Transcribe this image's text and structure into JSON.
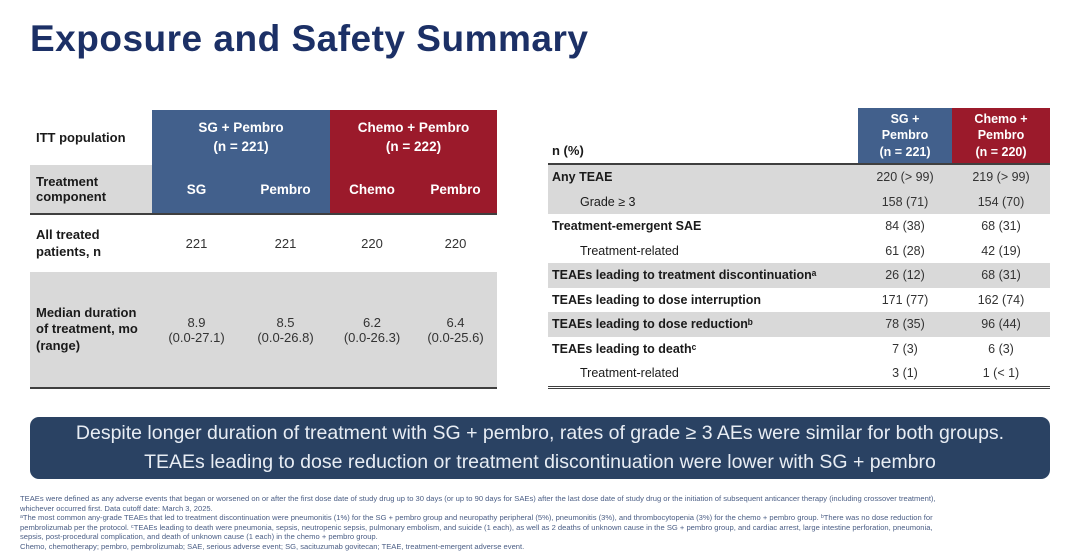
{
  "title": "Exposure and Safety Summary",
  "left_table": {
    "corner_label": "ITT population",
    "component_label": "Treatment component",
    "groups": [
      {
        "label": "SG + Pembro\n(n = 221)",
        "color": "blue"
      },
      {
        "label": "Chemo + Pembro\n(n = 222)",
        "color": "red"
      }
    ],
    "component_columns": [
      "SG",
      "Pembro",
      "Chemo",
      "Pembro"
    ],
    "rows": [
      {
        "label": "All treated patients, n",
        "values": [
          "221",
          "221",
          "220",
          "220"
        ],
        "shaded": false
      },
      {
        "label": "Median duration of treatment, mo (range)",
        "values": [
          "8.9\n(0.0-27.1)",
          "8.5\n(0.0-26.8)",
          "6.2\n(0.0-26.3)",
          "6.4\n(0.0-25.6)"
        ],
        "shaded": true
      }
    ]
  },
  "right_table": {
    "corner_label": "n (%)",
    "columns": [
      {
        "label": "SG +\nPembro\n(n = 221)",
        "color": "blue"
      },
      {
        "label": "Chemo +\nPembro\n(n = 220)",
        "color": "red"
      }
    ],
    "rows": [
      {
        "label": "Any TEAE",
        "bold": true,
        "indent": false,
        "shaded": true,
        "values": [
          "220 (> 99)",
          "219 (> 99)"
        ]
      },
      {
        "label": "Grade ≥ 3",
        "bold": false,
        "indent": true,
        "shaded": true,
        "values": [
          "158 (71)",
          "154 (70)"
        ]
      },
      {
        "label": "Treatment-emergent SAE",
        "bold": true,
        "indent": false,
        "shaded": false,
        "values": [
          "84 (38)",
          "68 (31)"
        ]
      },
      {
        "label": "Treatment-related",
        "bold": false,
        "indent": true,
        "shaded": false,
        "values": [
          "61 (28)",
          "42 (19)"
        ]
      },
      {
        "label": "TEAEs leading to treatment discontinuationᵃ",
        "bold": true,
        "indent": false,
        "shaded": true,
        "values": [
          "26 (12)",
          "68 (31)"
        ]
      },
      {
        "label": "TEAEs leading to dose interruption",
        "bold": true,
        "indent": false,
        "shaded": false,
        "values": [
          "171 (77)",
          "162 (74)"
        ]
      },
      {
        "label": "TEAEs leading to dose reductionᵇ",
        "bold": true,
        "indent": false,
        "shaded": true,
        "values": [
          "78 (35)",
          "96 (44)"
        ]
      },
      {
        "label": "TEAEs leading to deathᶜ",
        "bold": true,
        "indent": false,
        "shaded": false,
        "values": [
          "7 (3)",
          "6 (3)"
        ]
      },
      {
        "label": "Treatment-related",
        "bold": false,
        "indent": true,
        "shaded": false,
        "values": [
          "3 (1)",
          "1 (< 1)"
        ]
      }
    ]
  },
  "callout": {
    "text": "Despite longer duration of treatment with SG + pembro, rates of grade ≥ 3 AEs were similar for both groups. TEAEs leading to dose reduction or treatment discontinuation were lower with SG + pembro"
  },
  "footnotes": [
    "TEAEs were defined as any adverse events that began or worsened on or after the first dose date of study drug up to 30 days (or up to 90 days for SAEs) after the last dose date of study drug or the initiation of subsequent anticancer therapy (including crossover treatment),",
    "whichever occurred first. Data cutoff date: March 3, 2025.",
    "ᵃThe most common any-grade TEAEs that led to treatment discontinuation were pneumonitis (1%) for the SG + pembro group and neuropathy peripheral (5%), pneumonitis (3%), and thrombocytopenia (3%) for the chemo + pembro group. ᵇThere was no dose reduction for",
    "pembrolizumab per the protocol. ᶜTEAEs leading to death were pneumonia, sepsis, neutropenic sepsis, pulmonary embolism, and suicide (1 each), as well as 2 deaths of unknown cause in the SG + pembro group, and cardiac arrest, large intestine perforation, pneumonia,",
    "sepsis, post-procedural complication, and death of unknown cause (1 each) in the chemo + pembro group.",
    "Chemo, chemotherapy; pembro, pembrolizumab; SAE, serious adverse event; SG, sacituzumab govitecan; TEAE, treatment-emergent adverse event."
  ],
  "colors": {
    "navy_title": "#1c3066",
    "blue_header": "#42608c",
    "red_header": "#9b1a2b",
    "shade_gray": "#d9d9d9",
    "table_line": "#3f3f3f",
    "callout_bg": "#2a4263",
    "callout_text": "#e8edf4",
    "footnote_color": "#4b5e85"
  }
}
